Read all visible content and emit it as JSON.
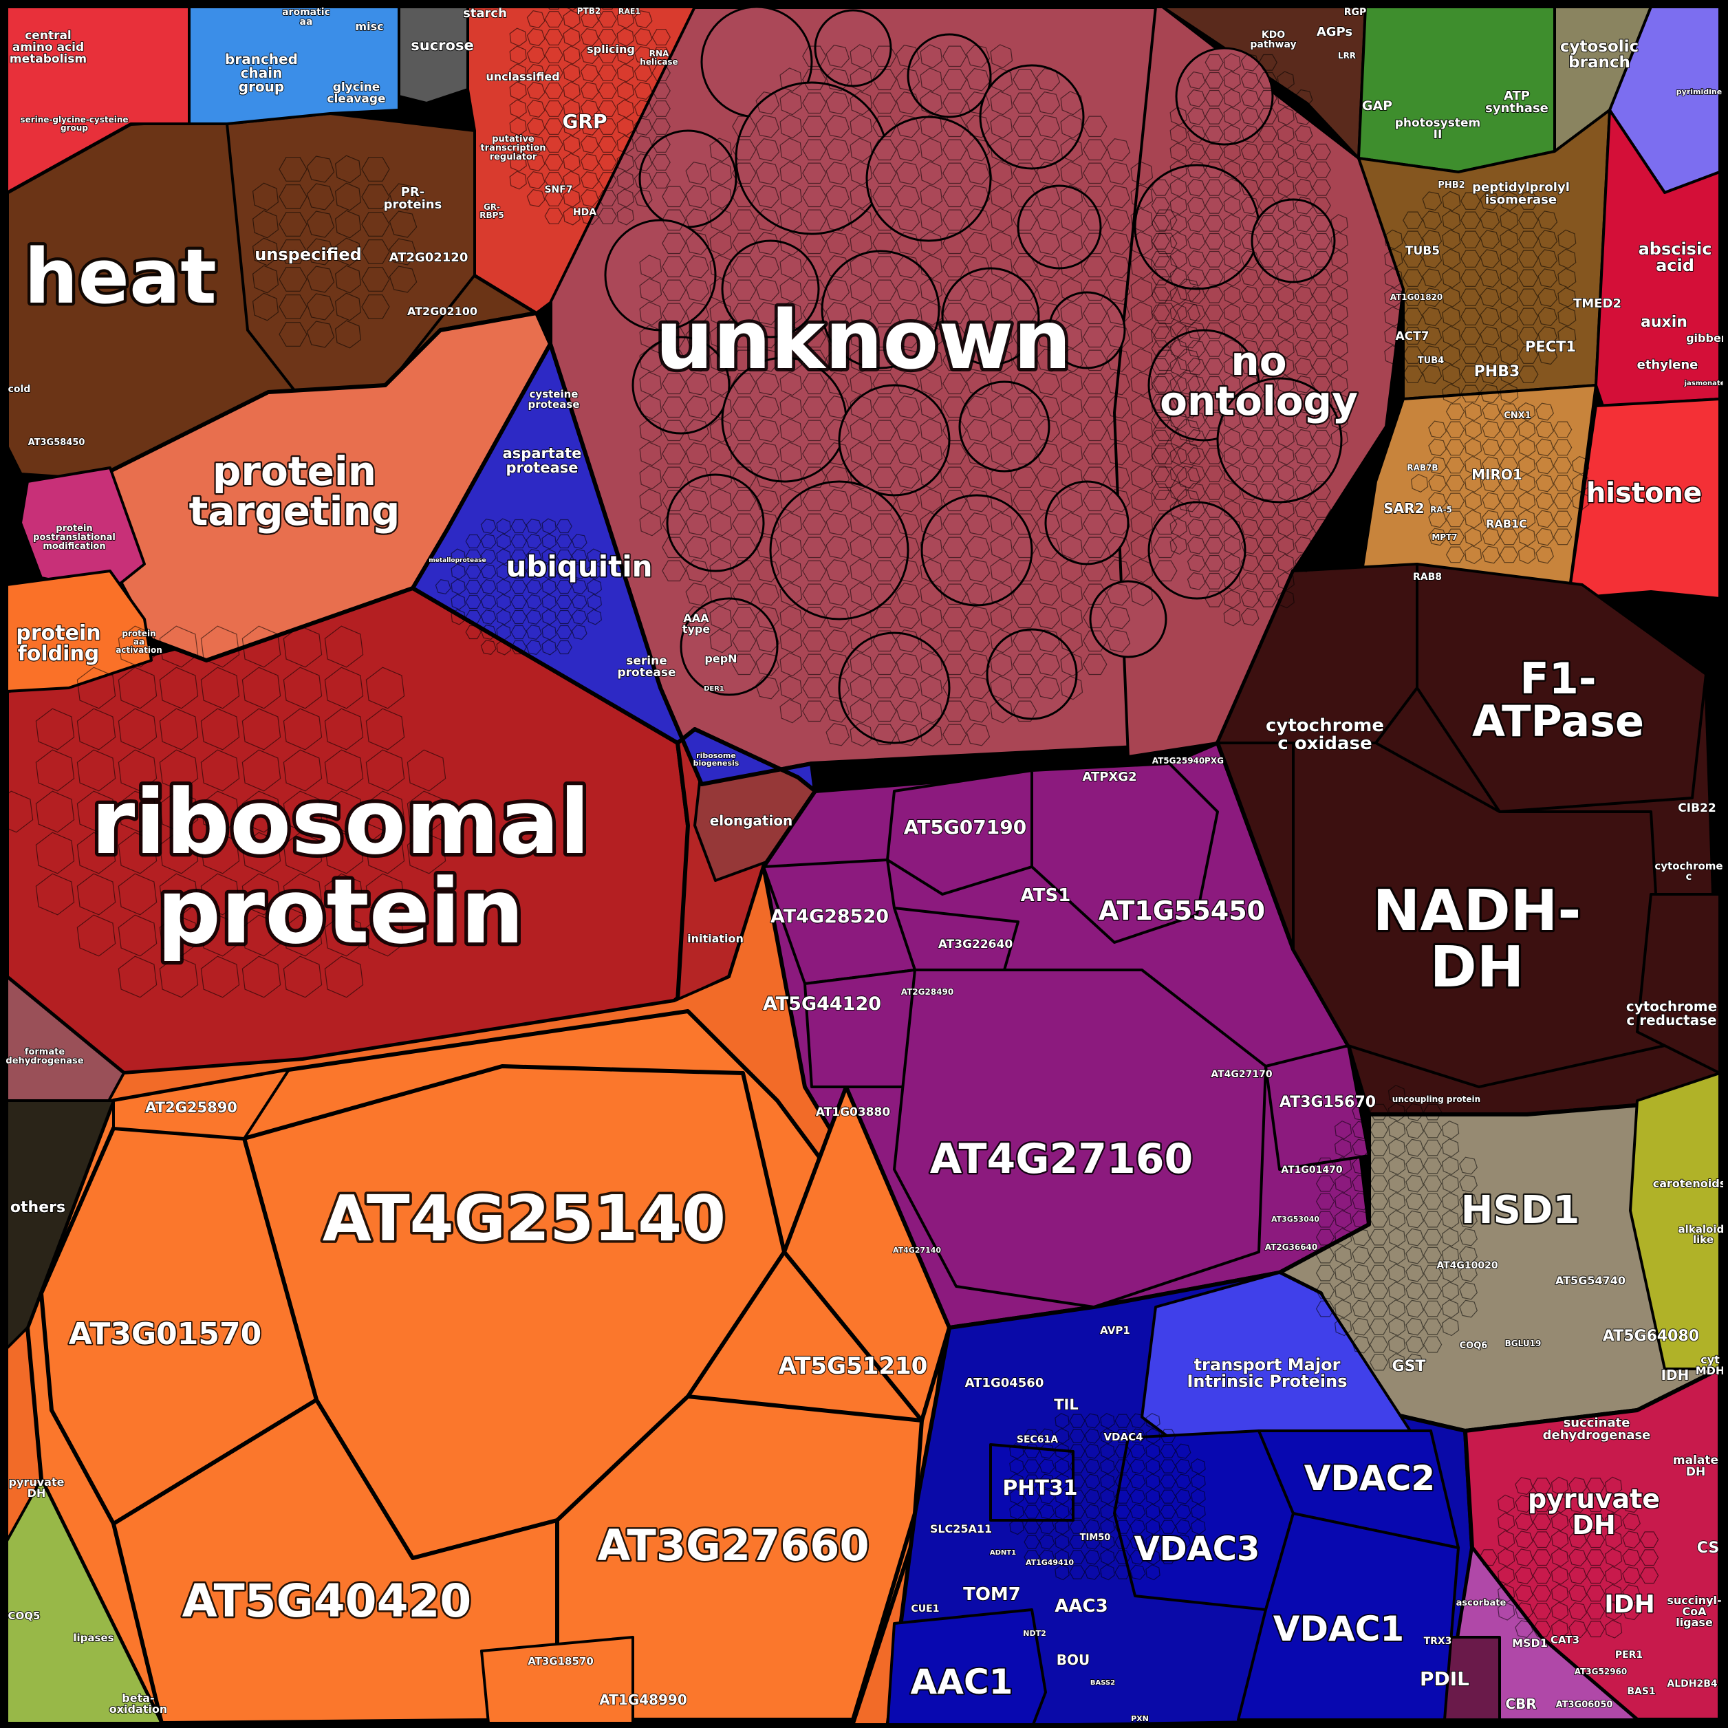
{
  "chart_data": {
    "type": "voronoi-treemap",
    "title": "",
    "colors": {
      "background": "#000000",
      "border": "#000000",
      "label": "#ffffff"
    },
    "groups": [
      {
        "label": "central amino acid metabolism",
        "color": "#e8303a",
        "weight": 0.006
      },
      {
        "label": "serine-glycine-cysteine group",
        "color": "#e8303a",
        "weight": 0.002
      },
      {
        "label": "branched chain group",
        "color": "#3b8ee8",
        "weight": 0.006
      },
      {
        "label": "glycine cleavage",
        "color": "#3b8ee8",
        "weight": 0.002
      },
      {
        "label": "aromatic aa",
        "color": "#3b8ee8",
        "weight": 0.001
      },
      {
        "label": "misc",
        "color": "#3b8ee8",
        "weight": 0.001
      },
      {
        "label": "sucrose",
        "color": "#5a5a5a",
        "weight": 0.003
      },
      {
        "label": "starch",
        "color": "#6a6a6a",
        "weight": 0.001
      },
      {
        "label": "unclassified",
        "color": "#d93b2e",
        "weight": 0.004
      },
      {
        "label": "splicing",
        "color": "#d93b2e",
        "weight": 0.002
      },
      {
        "label": "GRP",
        "color": "#d93b2e",
        "weight": 0.002
      },
      {
        "label": "putative transcription regulator",
        "color": "#d93b2e",
        "weight": 0.002
      },
      {
        "label": "heat",
        "color": "#6b3416",
        "weight": 0.028
      },
      {
        "label": "unspecified",
        "color": "#6b3416",
        "weight": 0.012
      },
      {
        "label": "PR-proteins",
        "color": "#6b3416",
        "weight": 0.004
      },
      {
        "label": "AT2G02120",
        "color": "#6b3416",
        "weight": 0.002
      },
      {
        "label": "AT2G02100",
        "color": "#6b3416",
        "weight": 0.002
      },
      {
        "label": "protein targeting",
        "color": "#e86f4e",
        "weight": 0.022
      },
      {
        "label": "protein postranslational modification",
        "color": "#c83078",
        "weight": 0.006
      },
      {
        "label": "protein folding",
        "color": "#fa7128",
        "weight": 0.005
      },
      {
        "label": "protein aa activation",
        "color": "#c8282a",
        "weight": 0.002
      },
      {
        "label": "ubiquitin",
        "color": "#2d29c5",
        "weight": 0.012
      },
      {
        "label": "aspartate protease",
        "color": "#2d29c5",
        "weight": 0.004
      },
      {
        "label": "cysteine protease",
        "color": "#2d29c5",
        "weight": 0.002
      },
      {
        "label": "serine protease",
        "color": "#2d29c5",
        "weight": 0.002
      },
      {
        "label": "AAA type",
        "color": "#2d29c5",
        "weight": 0.001
      },
      {
        "label": "pepN",
        "color": "#2d29c5",
        "weight": 0.001
      },
      {
        "label": "unknown",
        "color": "#aa4655",
        "weight": 0.115
      },
      {
        "label": "no ontology",
        "color": "#aa4655",
        "weight": 0.05
      },
      {
        "label": "ribosomal protein",
        "color": "#b41f22",
        "weight": 0.085
      },
      {
        "label": "elongation",
        "color": "#963838",
        "weight": 0.003
      },
      {
        "label": "ribosome biogenesis",
        "color": "#b41f22",
        "weight": 0.001
      },
      {
        "label": "initiation",
        "color": "#b41f22",
        "weight": 0.001
      },
      {
        "label": "AT4G25140",
        "color": "#fb772c",
        "weight": 0.05
      },
      {
        "label": "AT3G01570",
        "color": "#fb772c",
        "weight": 0.02
      },
      {
        "label": "AT5G51210",
        "color": "#fb772c",
        "weight": 0.012
      },
      {
        "label": "AT5G40420",
        "color": "#fb772c",
        "weight": 0.025
      },
      {
        "label": "AT3G27660",
        "color": "#fb772c",
        "weight": 0.025
      },
      {
        "label": "AT2G25890",
        "color": "#fb772c",
        "weight": 0.004
      },
      {
        "label": "AT3G18570",
        "color": "#fb772c",
        "weight": 0.004
      },
      {
        "label": "AT1G48990",
        "color": "#fb772c",
        "weight": 0.004
      },
      {
        "label": "AT5G07190",
        "color": "#8c1a7e",
        "weight": 0.01
      },
      {
        "label": "ATS1",
        "color": "#8c1a7e",
        "weight": 0.004
      },
      {
        "label": "AT1G55450",
        "color": "#8c1a7e",
        "weight": 0.018
      },
      {
        "label": "AT4G28520",
        "color": "#8c1a7e",
        "weight": 0.008
      },
      {
        "label": "AT3G22640",
        "color": "#8c1a7e",
        "weight": 0.004
      },
      {
        "label": "AT5G44120",
        "color": "#8c1a7e",
        "weight": 0.006
      },
      {
        "label": "AT4G27160",
        "color": "#8c1a7e",
        "weight": 0.038
      },
      {
        "label": "AT3G15670",
        "color": "#8c1a7e",
        "weight": 0.005
      },
      {
        "label": "ATPXG2",
        "color": "#8c1a7e",
        "weight": 0.002
      },
      {
        "label": "F1-ATPase",
        "color": "#3c1010",
        "weight": 0.03
      },
      {
        "label": "cytochrome c oxidase",
        "color": "#3c1010",
        "weight": 0.012
      },
      {
        "label": "NADH-DH",
        "color": "#3c1010",
        "weight": 0.04
      },
      {
        "label": "cytochrome c reductase",
        "color": "#3c1010",
        "weight": 0.008
      },
      {
        "label": "cytochrome c",
        "color": "#3c1010",
        "weight": 0.003
      },
      {
        "label": "CIB22",
        "color": "#3c1010",
        "weight": 0.001
      },
      {
        "label": "uncoupling protein",
        "color": "#3c1010",
        "weight": 0.002
      },
      {
        "label": "KDO pathway",
        "color": "#6e3424",
        "weight": 0.002
      },
      {
        "label": "AGPs",
        "color": "#6e3424",
        "weight": 0.002
      },
      {
        "label": "photosystem II",
        "color": "#3e8e2d",
        "weight": 0.006
      },
      {
        "label": "ATP synthase",
        "color": "#3e8e2d",
        "weight": 0.005
      },
      {
        "label": "GAP",
        "color": "#3e8e2d",
        "weight": 0.002
      },
      {
        "label": "cytosolic branch",
        "color": "#8a8460",
        "weight": 0.004
      },
      {
        "label": "peptidylprolyl isomerase",
        "color": "#8a5a24",
        "weight": 0.004
      },
      {
        "label": "TUB5",
        "color": "#8a5a24",
        "weight": 0.002
      },
      {
        "label": "PHB3",
        "color": "#8a5a24",
        "weight": 0.003
      },
      {
        "label": "PECT1",
        "color": "#8a5a24",
        "weight": 0.003
      },
      {
        "label": "TMED2",
        "color": "#8a5a24",
        "weight": 0.002
      },
      {
        "label": "ACT7",
        "color": "#8a5a24",
        "weight": 0.002
      },
      {
        "label": "MIRO1",
        "color": "#c87e3a",
        "weight": 0.003
      },
      {
        "label": "RAB1C",
        "color": "#c87e3a",
        "weight": 0.002
      },
      {
        "label": "SAR2",
        "color": "#c87e3a",
        "weight": 0.002
      },
      {
        "label": "RAB8",
        "color": "#c87e3a",
        "weight": 0.001
      },
      {
        "label": "abscisic acid",
        "color": "#d40f38",
        "weight": 0.005
      },
      {
        "label": "auxin",
        "color": "#d40f38",
        "weight": 0.002
      },
      {
        "label": "ethylene",
        "color": "#d40f38",
        "weight": 0.002
      },
      {
        "label": "gibberelin",
        "color": "#d40f38",
        "weight": 0.002
      },
      {
        "label": "histone",
        "color": "#f43036",
        "weight": 0.012
      },
      {
        "label": "HSD1",
        "color": "#968a72",
        "weight": 0.012
      },
      {
        "label": "AT5G54740",
        "color": "#968a72",
        "weight": 0.006
      },
      {
        "label": "AT5G64080",
        "color": "#968a72",
        "weight": 0.006
      },
      {
        "label": "GST",
        "color": "#968a72",
        "weight": 0.002
      },
      {
        "label": "carotenoids",
        "color": "#b0b228",
        "weight": 0.002
      },
      {
        "label": "alkaloid-like",
        "color": "#b0b228",
        "weight": 0.002
      },
      {
        "label": "transport Major Intrinsic Proteins",
        "color": "#4040ea",
        "weight": 0.01
      },
      {
        "label": "VDAC2",
        "color": "#0808b0",
        "weight": 0.012
      },
      {
        "label": "VDAC3",
        "color": "#0808b0",
        "weight": 0.012
      },
      {
        "label": "VDAC1",
        "color": "#0808b0",
        "weight": 0.014
      },
      {
        "label": "AAC1",
        "color": "#0a0ab8",
        "weight": 0.008
      },
      {
        "label": "AAC3",
        "color": "#0a0ab8",
        "weight": 0.003
      },
      {
        "label": "PHT31",
        "color": "#0a0ab8",
        "weight": 0.004
      },
      {
        "label": "TOM7",
        "color": "#0a0ab8",
        "weight": 0.003
      },
      {
        "label": "AT1G04560",
        "color": "#0a0ab8",
        "weight": 0.003
      },
      {
        "label": "TIL",
        "color": "#0a0ab8",
        "weight": 0.001
      },
      {
        "label": "pyruvate DH",
        "color": "#c81a4c",
        "weight": 0.01
      },
      {
        "label": "succinate dehydrogenase",
        "color": "#c81a4c",
        "weight": 0.004
      },
      {
        "label": "IDH",
        "color": "#c81a4c",
        "weight": 0.003
      },
      {
        "label": "malate DH",
        "color": "#c81a4c",
        "weight": 0.002
      },
      {
        "label": "succinyl-CoA ligase",
        "color": "#c81a4c",
        "weight": 0.002
      },
      {
        "label": "PDIL",
        "color": "#6a1a4a",
        "weight": 0.002
      },
      {
        "label": "CBR",
        "color": "#c040a8",
        "weight": 0.001
      },
      {
        "label": "formate dehydrogenase",
        "color": "#9a5058",
        "weight": 0.003
      },
      {
        "label": "others",
        "color": "#2a2418",
        "weight": 0.006
      },
      {
        "label": "lipases",
        "color": "#fb772c",
        "weight": 0.002
      },
      {
        "label": "COQ5",
        "color": "#98b848",
        "weight": 0.001
      }
    ]
  },
  "labels": {
    "unknown": "unknown",
    "no_ontology": "no ontology",
    "ribosomal": "ribosomal protein",
    "heat": "heat",
    "protein_targeting": "protein targeting",
    "ubiquitin": "ubiquitin",
    "aspartate_protease": "aspartate protease",
    "cysteine_protease": "cysteine protease",
    "serine_protease": "serine protease",
    "aaa_type": "AAA type",
    "pepN": "pepN",
    "metalloprotease": "metalloprotease",
    "DER1": "DER1",
    "unspecified": "unspecified",
    "pr_proteins": "PR-proteins",
    "at2g02120": "AT2G02120",
    "at2g02100": "AT2G02100",
    "cold": "cold",
    "at3g58450": "AT3G58450",
    "central_aa": "central amino acid metabolism",
    "ser_gly_cys": "serine-glycine-cysteine group",
    "branched_chain": "branched chain group",
    "glycine_cleavage": "glycine cleavage",
    "aromatic_aa": "aromatic aa",
    "misc": "misc",
    "sucrose": "sucrose",
    "starch": "starch",
    "unclassified": "unclassified",
    "splicing": "splicing",
    "grp": "GRP",
    "putative_tr": "putative transcription regulator",
    "rna_helicase": "RNA helicase",
    "snf7": "SNF7",
    "hda": "HDA",
    "gr_rbp5": "GR-RBP5",
    "ptb2": "PTB2",
    "rae1": "RAE1",
    "protein_ptm": "protein postranslational modification",
    "protein_folding": "protein folding",
    "protein_aa_act": "protein aa activation",
    "elongation": "elongation",
    "ribosome_biogenesis": "ribosome biogenesis",
    "initiation": "initiation",
    "at4g25140": "AT4G25140",
    "at3g01570": "AT3G01570",
    "at5g51210": "AT5G51210",
    "at5g40420": "AT5G40420",
    "at3g27660": "AT3G27660",
    "at2g25890": "AT2G25890",
    "at3g18570": "AT3G18570",
    "at1g48990": "AT1G48990",
    "at5g07190": "AT5G07190",
    "ats1": "ATS1",
    "at1g55450": "AT1G55450",
    "at4g28520": "AT4G28520",
    "at3g22640": "AT3G22640",
    "at5g44120": "AT5G44120",
    "at2g28490": "AT2G28490",
    "at1g03880": "AT1G03880",
    "at4g27160": "AT4G27160",
    "at4g27170": "AT4G27170",
    "at3g15670": "AT3G15670",
    "at1g01470": "AT1G01470",
    "at2g36640": "AT2G36640",
    "at3g53040": "AT3G53040",
    "at4g27140": "AT4G27140",
    "atpxg2": "ATPXG2",
    "at5g25940": "AT5G25940",
    "pxg": "PXG",
    "f1_atpase": "F1-ATPase",
    "cyt_c_oxidase": "cytochrome c oxidase",
    "nadh_dh": "NADH-DH",
    "cyt_c_reductase": "cytochrome c reductase",
    "cyt_c": "cytochrome c",
    "cib22": "CIB22",
    "uncoupling": "uncoupling protein",
    "kdo": "KDO pathway",
    "agps": "AGPs",
    "rgp": "RGP",
    "lrr": "LRR",
    "photosystem": "photosystem II",
    "atp_synthase": "ATP synthase",
    "gap": "GAP",
    "cytosolic_branch": "cytosolic branch",
    "pyrimidine": "pyrimidine",
    "ppi": "peptidylprolyl isomerase",
    "tub5": "TUB5",
    "tmed2": "TMED2",
    "pect1": "PECT1",
    "phb3": "PHB3",
    "act7": "ACT7",
    "tub4": "TUB4",
    "cnx1": "CNX1",
    "at1g01820": "AT1G01820",
    "phb2": "PHB2",
    "miro1": "MIRO1",
    "rab1c": "RAB1C",
    "sar2": "SAR2",
    "rab8": "RAB8",
    "rab7b": "RAB7B",
    "mpt7": "MPT7",
    "ra5": "RA-5",
    "abscisic": "abscisic acid",
    "auxin": "auxin",
    "ethylene": "ethylene",
    "gibberelin": "gibberelin",
    "jasmonate": "jasmonate",
    "histone": "histone",
    "hsd1": "HSD1",
    "at5g54740": "AT5G54740",
    "at5g64080": "AT5G64080",
    "at4g10020": "AT4G10020",
    "gst": "GST",
    "coq6": "COQ6",
    "bglu19": "BGLU19",
    "carotenoids": "carotenoids",
    "alkaloid": "alkaloid-like",
    "cyt_mdh": "cyt MDH",
    "idh_top": "IDH",
    "transport_mip": "transport Major Intrinsic Proteins",
    "avp1": "AVP1",
    "vdac2": "VDAC2",
    "vdac3": "VDAC3",
    "vdac1": "VDAC1",
    "vdac4": "VDAC4",
    "aac1": "AAC1",
    "aac3": "AAC3",
    "pht31": "PHT31",
    "tom7": "TOM7",
    "at1g04560": "AT1G04560",
    "til": "TIL",
    "sec61a": "SEC61A",
    "slc25a11": "SLC25A11",
    "bou": "BOU",
    "tim50": "TIM50",
    "at1g49410": "AT1G49410",
    "cue1": "CUE1",
    "adnt1": "ADNT1",
    "ndt2": "NDT2",
    "pxn": "PXN",
    "bass2": "BASS2",
    "pyruvate_dh": "pyruvate DH",
    "sdh": "succinate dehydrogenase",
    "idh": "IDH",
    "malate_dh": "malate DH",
    "succinyl": "succinyl-CoA ligase",
    "cs": "CS",
    "aldh2b4": "ALDH2B4",
    "pdil": "PDIL",
    "cbr": "CBR",
    "trx3": "TRX3",
    "msd1": "MSD1",
    "cat3": "CAT3",
    "per1": "PER1",
    "ascorbate": "ascorbate",
    "at3g06050": "AT3G06050",
    "at3g52960": "AT3G52960",
    "bas1": "BAS1",
    "formate_dh": "formate dehydrogenase",
    "others": "others",
    "pyruvate_dh_left": "pyruvate DH",
    "lipases": "lipases",
    "coq5": "COQ5",
    "beta_ox": "beta-oxidation"
  }
}
